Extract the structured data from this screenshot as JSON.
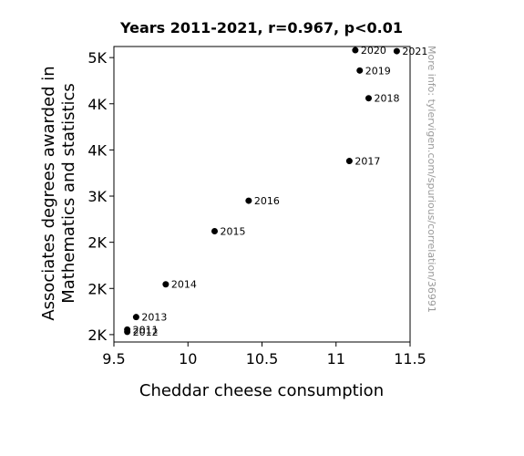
{
  "chart_data": {
    "type": "scatter",
    "title": "Years 2011-2021, r=0.967, p<0.01",
    "xlabel": "Cheddar cheese consumption",
    "ylabel_lines": [
      "Associates degrees awarded in",
      "Mathematics and statistics"
    ],
    "side_note": "More info: tylervigen.com/spurious/correlation/36991",
    "xlim": [
      9.5,
      11.5
    ],
    "ylim": [
      1420,
      4620
    ],
    "x_ticks": [
      9.5,
      10,
      10.5,
      11,
      11.5
    ],
    "x_tick_labels": [
      "9.5",
      "10",
      "10.5",
      "11",
      "11.5"
    ],
    "y_ticks": [
      1500,
      2000,
      2500,
      3000,
      3500,
      4000,
      4500
    ],
    "y_tick_labels": [
      "2K",
      "2K",
      "2K",
      "3K",
      "4K",
      "4K",
      "5K"
    ],
    "grid": false,
    "points": [
      {
        "label": "2011",
        "x": 9.59,
        "y": 1555
      },
      {
        "label": "2012",
        "x": 9.59,
        "y": 1530
      },
      {
        "label": "2013",
        "x": 9.65,
        "y": 1690
      },
      {
        "label": "2014",
        "x": 9.85,
        "y": 2045
      },
      {
        "label": "2015",
        "x": 10.18,
        "y": 2620
      },
      {
        "label": "2016",
        "x": 10.41,
        "y": 2950
      },
      {
        "label": "2017",
        "x": 11.09,
        "y": 3380
      },
      {
        "label": "2018",
        "x": 11.22,
        "y": 4060
      },
      {
        "label": "2019",
        "x": 11.16,
        "y": 4360
      },
      {
        "label": "2020",
        "x": 11.13,
        "y": 4580
      },
      {
        "label": "2021",
        "x": 11.41,
        "y": 4570
      }
    ],
    "marker_color": "#000000"
  }
}
